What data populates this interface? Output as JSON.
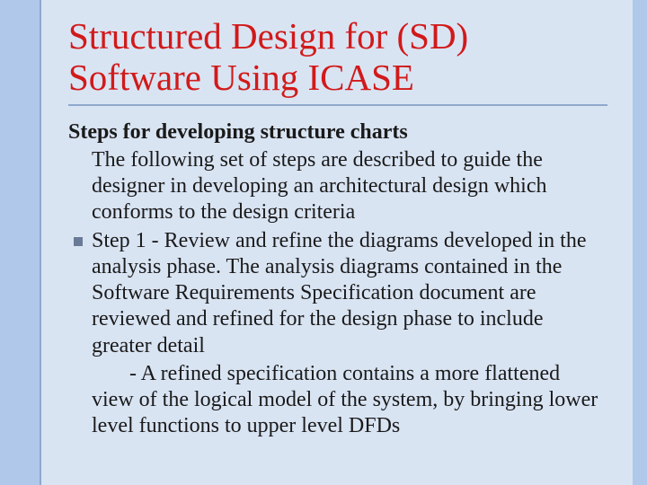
{
  "slide": {
    "background_color": "#b0c8ea",
    "content_background": "#d9e4f3",
    "border_color": "#8fa8cc",
    "title_color": "#d11a1a",
    "text_color": "#1a1a1a",
    "bullet_color": "#6a7a96",
    "title_fontsize": 41,
    "body_fontsize": 24,
    "font_family": "Times New Roman",
    "title": "Structured Design for (SD) Software Using ICASE",
    "subtitle": "Steps for developing structure charts",
    "intro": "The following set of steps are described to guide the designer in developing an architectural design which conforms to the design criteria",
    "step1": "Step 1 - Review and refine the diagrams developed in the analysis phase. The analysis diagrams contained in the Software Requirements Specification document are reviewed and refined for the design phase to include greater detail",
    "subnote_prefix": "       - A refined specification contains a more flattened",
    "subnote_rest": "view of the logical model of the system, by bringing lower level functions to upper level DFDs"
  }
}
